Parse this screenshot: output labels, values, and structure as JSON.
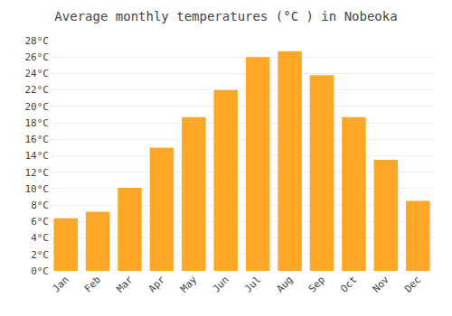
{
  "chart_data": {
    "type": "bar",
    "title": "Average monthly temperatures (°C ) in Nobeoka",
    "categories": [
      "Jan",
      "Feb",
      "Mar",
      "Apr",
      "May",
      "Jun",
      "Jul",
      "Aug",
      "Sep",
      "Oct",
      "Nov",
      "Dec"
    ],
    "values": [
      6.4,
      7.2,
      10.1,
      15.0,
      18.7,
      22.0,
      26.0,
      26.7,
      23.8,
      18.7,
      13.5,
      8.5
    ],
    "color": "#FFA726",
    "ylim": [
      0,
      28
    ],
    "yticks": [
      {
        "value": 0,
        "label": "0°C"
      },
      {
        "value": 2,
        "label": "2°C"
      },
      {
        "value": 4,
        "label": "4°C"
      },
      {
        "value": 6,
        "label": "6°C"
      },
      {
        "value": 8,
        "label": "8°C"
      },
      {
        "value": 10,
        "label": "10°C"
      },
      {
        "value": 12,
        "label": "12°C"
      },
      {
        "value": 14,
        "label": "14°C"
      },
      {
        "value": 16,
        "label": "16°C"
      },
      {
        "value": 18,
        "label": "18°C"
      },
      {
        "value": 20,
        "label": "20°C"
      },
      {
        "value": 22,
        "label": "22°C"
      },
      {
        "value": 24,
        "label": "24°C"
      },
      {
        "value": 26,
        "label": "26°C"
      },
      {
        "value": 28,
        "label": "28°C"
      }
    ],
    "grid": true
  }
}
